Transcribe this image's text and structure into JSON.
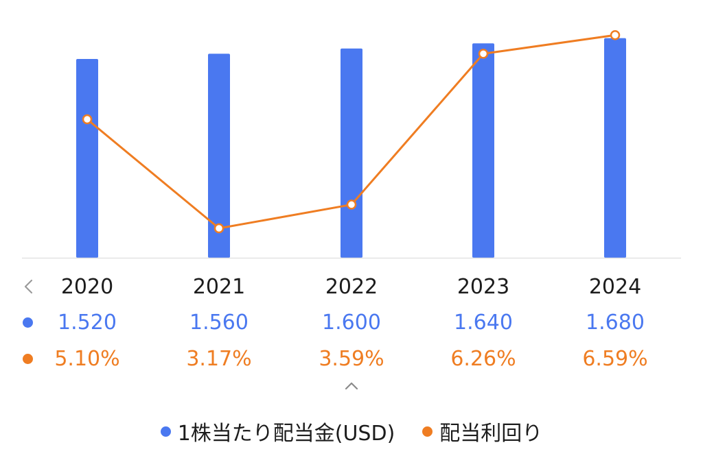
{
  "chart_data": {
    "type": "bar",
    "categories": [
      "2020",
      "2021",
      "2022",
      "2023",
      "2024"
    ],
    "series": [
      {
        "name": "1株当たり配当金(USD)",
        "type": "bar",
        "color": "#4a78f0",
        "values": [
          1.52,
          1.56,
          1.6,
          1.64,
          1.68
        ],
        "labels": [
          "1.520",
          "1.560",
          "1.600",
          "1.640",
          "1.680"
        ]
      },
      {
        "name": "配当利回り",
        "type": "line",
        "color": "#ef7d22",
        "values": [
          5.1,
          3.17,
          3.59,
          6.26,
          6.59
        ],
        "labels": [
          "5.10%",
          "3.17%",
          "3.59%",
          "6.26%",
          "6.59%"
        ]
      }
    ],
    "legend_position": "bottom",
    "grid": false
  },
  "icons": {
    "prev": "chevron-left-icon",
    "expand": "chevron-up-icon"
  }
}
